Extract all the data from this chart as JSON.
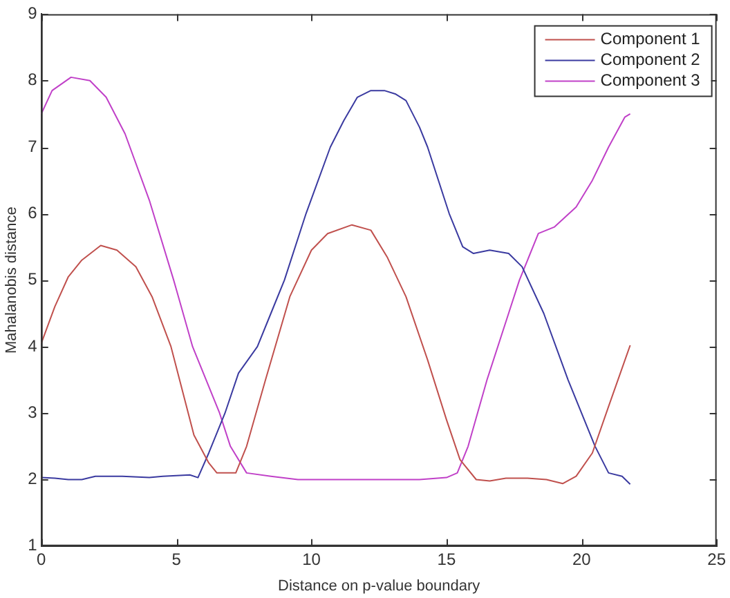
{
  "chart_data": {
    "type": "line",
    "xlabel": "Distance on p-value boundary",
    "ylabel": "Mahalanobis distance",
    "xlim": [
      0,
      25
    ],
    "ylim": [
      1,
      9
    ],
    "xticks": [
      0,
      5,
      10,
      15,
      20,
      25
    ],
    "yticks": [
      1,
      2,
      3,
      4,
      5,
      6,
      7,
      8,
      9
    ],
    "grid": false,
    "legend": "top right",
    "marker": "none",
    "line_style": "solid",
    "series": [
      {
        "name": "Component 1",
        "color": "#c0504d",
        "x": [
          0,
          0.5,
          1,
          1.5,
          2.2,
          2.8,
          3.5,
          4.1,
          4.8,
          5.65,
          6.2,
          6.5,
          7.2,
          7.6,
          8.3,
          9.2,
          10,
          10.6,
          11.5,
          12.2,
          12.8,
          13.5,
          14.3,
          15,
          15.5,
          16.1,
          16.6,
          17.2,
          18,
          18.7,
          19.3,
          19.8,
          20.4,
          21,
          21.8
        ],
        "values": [
          4.05,
          4.6,
          5.05,
          5.3,
          5.52,
          5.45,
          5.2,
          4.75,
          4,
          2.67,
          2.25,
          2.1,
          2.1,
          2.5,
          3.5,
          4.75,
          5.45,
          5.7,
          5.83,
          5.75,
          5.35,
          4.75,
          3.8,
          2.9,
          2.3,
          2.0,
          1.98,
          2.02,
          2.02,
          2.0,
          1.94,
          2.05,
          2.4,
          3.1,
          4.02
        ]
      },
      {
        "name": "Component 2",
        "color": "#3a3aa0",
        "x": [
          0,
          0.5,
          1,
          1.5,
          2,
          3,
          4,
          4.5,
          5,
          5.5,
          5.8,
          6.2,
          6.8,
          7.3,
          8,
          8.5,
          9,
          9.8,
          10.7,
          11.2,
          11.7,
          12.2,
          12.7,
          13.1,
          13.5,
          14,
          14.3,
          15.1,
          15.6,
          16,
          16.6,
          17.3,
          17.8,
          18.6,
          19.5,
          20.5,
          21,
          21.5,
          21.8
        ],
        "values": [
          2.03,
          2.02,
          2.0,
          2.0,
          2.05,
          2.05,
          2.03,
          2.05,
          2.06,
          2.07,
          2.03,
          2.4,
          3,
          3.6,
          4,
          4.5,
          5,
          6,
          7,
          7.4,
          7.75,
          7.85,
          7.85,
          7.8,
          7.7,
          7.3,
          7,
          6,
          5.5,
          5.4,
          5.45,
          5.4,
          5.2,
          4.5,
          3.5,
          2.5,
          2.1,
          2.05,
          1.93
        ]
      },
      {
        "name": "Component 3",
        "color": "#c040c8",
        "x": [
          0,
          0.4,
          1.1,
          1.8,
          2.4,
          3.1,
          4,
          4.9,
          5.6,
          6.6,
          7,
          7.6,
          8.5,
          9.5,
          11,
          12,
          13,
          14,
          15,
          15.4,
          15.8,
          16.5,
          17.3,
          17.7,
          18.4,
          19,
          19.8,
          20.4,
          21,
          21.6,
          21.8
        ],
        "values": [
          7.5,
          7.85,
          8.05,
          8.0,
          7.75,
          7.2,
          6.2,
          5,
          4,
          3,
          2.5,
          2.1,
          2.05,
          2.0,
          2.0,
          2.0,
          2.0,
          2.0,
          2.03,
          2.1,
          2.5,
          3.5,
          4.5,
          5,
          5.7,
          5.8,
          6.1,
          6.5,
          7,
          7.45,
          7.5
        ]
      }
    ]
  }
}
